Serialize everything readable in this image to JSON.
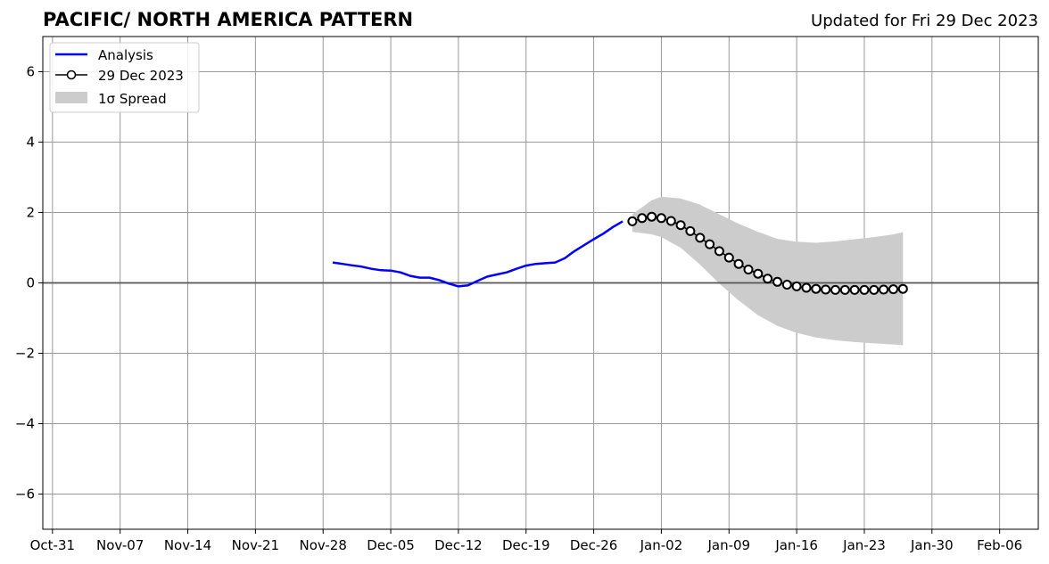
{
  "chart_data": {
    "type": "line",
    "title": "PACIFIC/ NORTH AMERICA PATTERN",
    "subtitle": "Updated for Fri 29 Dec 2023",
    "xlabel": "",
    "ylabel": "",
    "x_ticks": [
      "Oct-31",
      "Nov-07",
      "Nov-14",
      "Nov-21",
      "Nov-28",
      "Dec-05",
      "Dec-12",
      "Dec-19",
      "Dec-26",
      "Jan-02",
      "Jan-09",
      "Jan-16",
      "Jan-23",
      "Jan-30",
      "Feb-06"
    ],
    "y_ticks": [
      "6",
      "4",
      "2",
      "0",
      "−2",
      "−4",
      "−6"
    ],
    "xlim": [
      "2023-10-30",
      "2024-02-10"
    ],
    "ylim": [
      -7,
      7
    ],
    "grid": true,
    "legend_position": "top-left",
    "series": [
      {
        "name": "Analysis",
        "color": "#0000ff",
        "x": [
          "2023-11-29",
          "2023-11-30",
          "2023-12-01",
          "2023-12-02",
          "2023-12-03",
          "2023-12-04",
          "2023-12-05",
          "2023-12-06",
          "2023-12-07",
          "2023-12-08",
          "2023-12-09",
          "2023-12-10",
          "2023-12-11",
          "2023-12-12",
          "2023-12-13",
          "2023-12-14",
          "2023-12-15",
          "2023-12-16",
          "2023-12-17",
          "2023-12-18",
          "2023-12-19",
          "2023-12-20",
          "2023-12-21",
          "2023-12-22",
          "2023-12-23",
          "2023-12-24",
          "2023-12-25",
          "2023-12-26",
          "2023-12-27",
          "2023-12-28",
          "2023-12-29"
        ],
        "values": [
          0.58,
          0.54,
          0.5,
          0.46,
          0.4,
          0.36,
          0.35,
          0.3,
          0.2,
          0.15,
          0.15,
          0.08,
          -0.02,
          -0.1,
          -0.07,
          0.06,
          0.18,
          0.24,
          0.3,
          0.4,
          0.49,
          0.54,
          0.56,
          0.58,
          0.7,
          0.9,
          1.07,
          1.24,
          1.4,
          1.59,
          1.75
        ]
      },
      {
        "name": "29 Dec 2023",
        "color": "#000000",
        "marker": "open-circle",
        "x": [
          "2023-12-30",
          "2023-12-31",
          "2024-01-01",
          "2024-01-02",
          "2024-01-03",
          "2024-01-04",
          "2024-01-05",
          "2024-01-06",
          "2024-01-07",
          "2024-01-08",
          "2024-01-09",
          "2024-01-10",
          "2024-01-11",
          "2024-01-12",
          "2024-01-13",
          "2024-01-14",
          "2024-01-15",
          "2024-01-16",
          "2024-01-17",
          "2024-01-18",
          "2024-01-19",
          "2024-01-20",
          "2024-01-21",
          "2024-01-22",
          "2024-01-23",
          "2024-01-24",
          "2024-01-25",
          "2024-01-26",
          "2024-01-27"
        ],
        "values": [
          1.75,
          1.84,
          1.88,
          1.84,
          1.76,
          1.64,
          1.47,
          1.28,
          1.1,
          0.9,
          0.72,
          0.54,
          0.38,
          0.26,
          0.12,
          0.03,
          -0.05,
          -0.1,
          -0.14,
          -0.17,
          -0.19,
          -0.2,
          -0.2,
          -0.2,
          -0.2,
          -0.2,
          -0.19,
          -0.18,
          -0.17
        ]
      }
    ],
    "spread": {
      "name": "1σ Spread",
      "color": "#cccccc",
      "x": [
        "2023-12-30",
        "2024-01-01",
        "2024-01-02",
        "2024-01-04",
        "2024-01-06",
        "2024-01-08",
        "2024-01-10",
        "2024-01-12",
        "2024-01-14",
        "2024-01-16",
        "2024-01-18",
        "2024-01-20",
        "2024-01-22",
        "2024-01-24",
        "2024-01-26",
        "2024-01-27"
      ],
      "upper": [
        1.95,
        2.35,
        2.45,
        2.4,
        2.22,
        1.95,
        1.68,
        1.45,
        1.25,
        1.17,
        1.14,
        1.18,
        1.24,
        1.3,
        1.38,
        1.44
      ],
      "lower": [
        1.45,
        1.38,
        1.3,
        1.0,
        0.52,
        -0.02,
        -0.5,
        -0.92,
        -1.22,
        -1.42,
        -1.55,
        -1.63,
        -1.68,
        -1.72,
        -1.75,
        -1.77
      ]
    },
    "reference_line": {
      "y": 0,
      "color": "#555555"
    }
  }
}
